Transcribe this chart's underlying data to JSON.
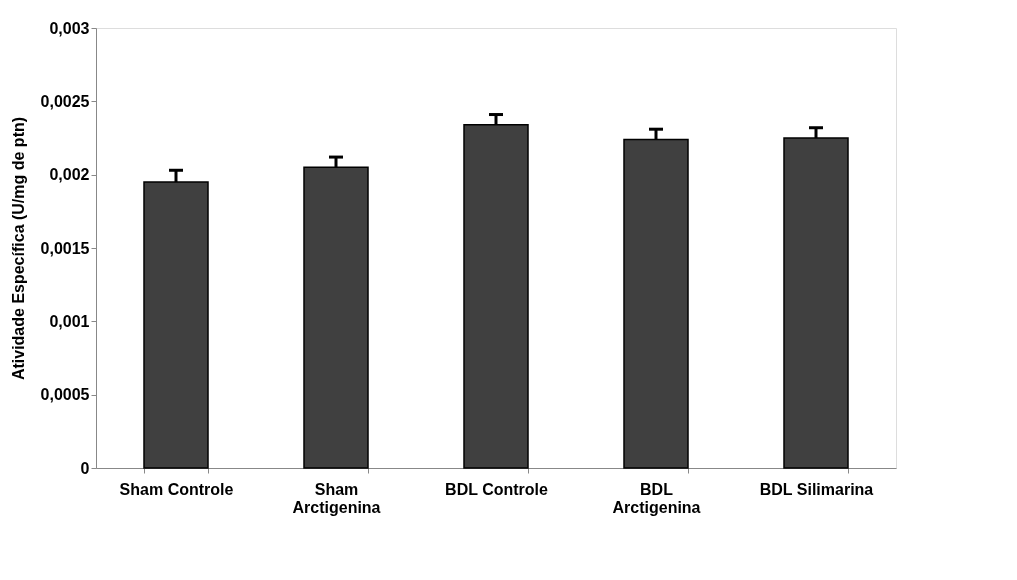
{
  "chart_data": {
    "type": "bar",
    "ylabel": "Atividade Específica (U/mg de ptn)",
    "categories": [
      "Sham Controle",
      "Sham Arctigenina",
      "BDL Controle",
      "BDL Arctigenina",
      "BDL Silimarina"
    ],
    "values": [
      0.00195,
      0.00205,
      0.00234,
      0.00224,
      0.00225
    ],
    "errors": [
      [
        0.00195,
        0.00203
      ],
      [
        0.00205,
        0.00212
      ],
      [
        0.00234,
        0.00241
      ],
      [
        0.00224,
        0.00231
      ],
      [
        0.00225,
        0.00232
      ]
    ],
    "color": "#404040",
    "ylim": [
      0,
      0.003
    ],
    "yticks": [
      {
        "value": 0,
        "label": "0"
      },
      {
        "value": 0.0005,
        "label": "0,0005"
      },
      {
        "value": 0.001,
        "label": "0,001"
      },
      {
        "value": 0.0015,
        "label": "0,0015"
      },
      {
        "value": 0.002,
        "label": "0,002"
      },
      {
        "value": 0.0025,
        "label": "0,0025"
      },
      {
        "value": 0.003,
        "label": "0,003"
      }
    ],
    "grid": false
  }
}
